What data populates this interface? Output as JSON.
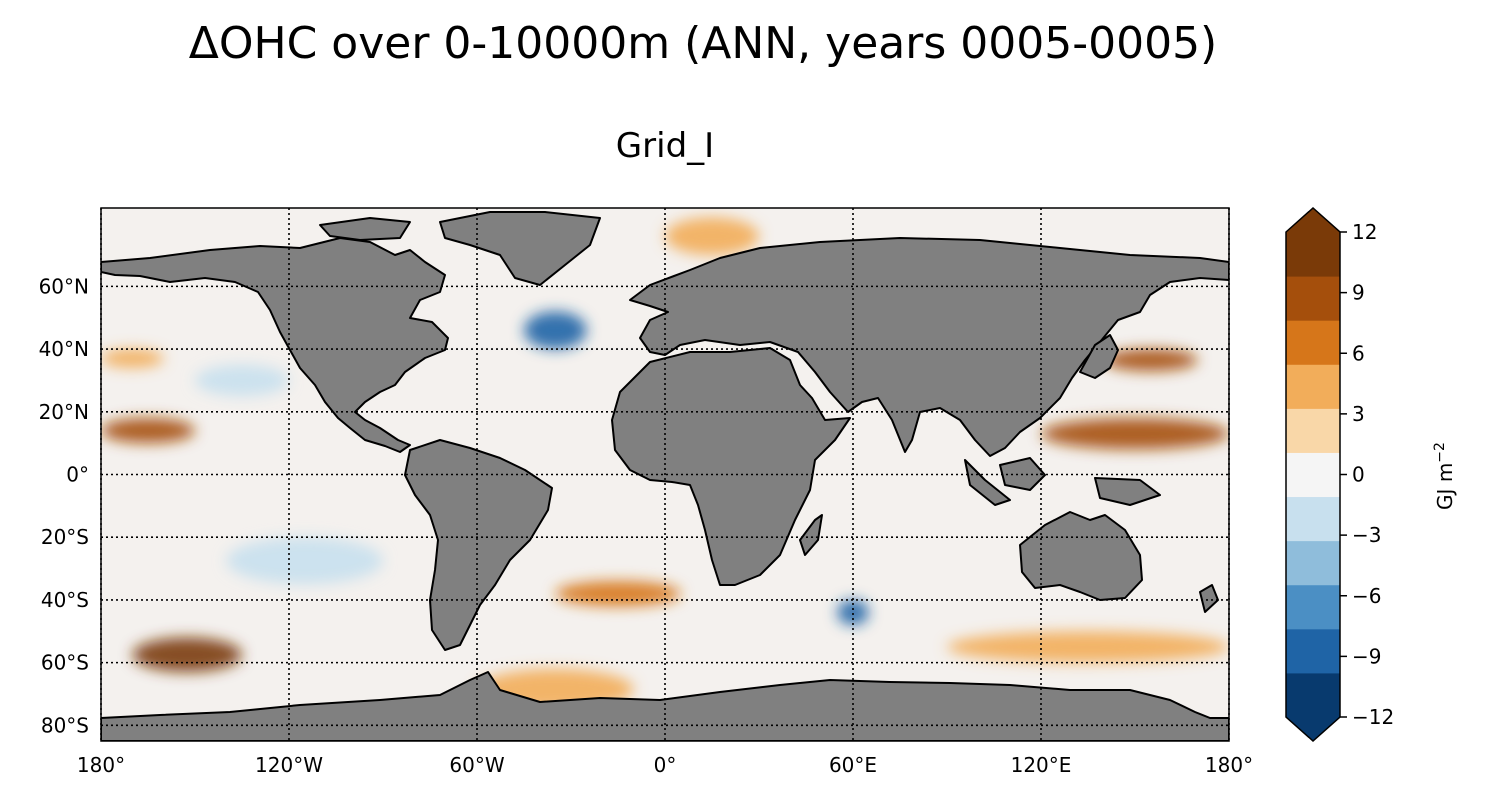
{
  "title": "ΔOHC over 0-10000m (ANN, years 0005-0005)",
  "panel_title": "Grid_I",
  "map": {
    "projection": "PlateCarree",
    "lon_range": [
      -180,
      180
    ],
    "lat_range": [
      -85,
      85
    ],
    "lat_ticks": [
      {
        "lat": 60,
        "label": "60°N"
      },
      {
        "lat": 40,
        "label": "40°N"
      },
      {
        "lat": 20,
        "label": "20°N"
      },
      {
        "lat": 0,
        "label": "0°"
      },
      {
        "lat": -20,
        "label": "20°S"
      },
      {
        "lat": -40,
        "label": "40°S"
      },
      {
        "lat": -60,
        "label": "60°S"
      },
      {
        "lat": -80,
        "label": "80°S"
      }
    ],
    "lon_ticks": [
      {
        "lon": -180,
        "label": "180°"
      },
      {
        "lon": -120,
        "label": "120°W"
      },
      {
        "lon": -60,
        "label": "60°W"
      },
      {
        "lon": 0,
        "label": "0°"
      },
      {
        "lon": 60,
        "label": "60°E"
      },
      {
        "lon": 120,
        "label": "120°E"
      },
      {
        "lon": 180,
        "label": "180°"
      }
    ],
    "gridlines": true,
    "land_color": "#808080",
    "coastline_color": "#000000",
    "field_range": [
      -12,
      12
    ],
    "anomaly_bands": [
      {
        "lon": [
          -180,
          -150
        ],
        "lat": [
          10,
          18
        ],
        "value": 9
      },
      {
        "lon": [
          -180,
          -160
        ],
        "lat": [
          34,
          40
        ],
        "value": 5
      },
      {
        "lon": [
          -170,
          -135
        ],
        "lat": [
          -63,
          -52
        ],
        "value": 11
      },
      {
        "lon": [
          120,
          180
        ],
        "lat": [
          8,
          18
        ],
        "value": 9
      },
      {
        "lon": [
          140,
          170
        ],
        "lat": [
          33,
          40
        ],
        "value": 9
      },
      {
        "lon": [
          -45,
          -25
        ],
        "lat": [
          40,
          52
        ],
        "value": -10
      },
      {
        "lon": [
          -35,
          5
        ],
        "lat": [
          -42,
          -34
        ],
        "value": 6
      },
      {
        "lon": [
          55,
          65
        ],
        "lat": [
          -48,
          -40
        ],
        "value": -9
      },
      {
        "lon": [
          -60,
          -10
        ],
        "lat": [
          -75,
          -62
        ],
        "value": 4
      },
      {
        "lon": [
          -140,
          -90
        ],
        "lat": [
          -35,
          -20
        ],
        "value": -3
      },
      {
        "lon": [
          -150,
          -120
        ],
        "lat": [
          25,
          35
        ],
        "value": -3
      },
      {
        "lon": [
          90,
          180
        ],
        "lat": [
          -60,
          -50
        ],
        "value": 5
      },
      {
        "lon": [
          0,
          30
        ],
        "lat": [
          70,
          82
        ],
        "value": 5
      }
    ]
  },
  "colorbar": {
    "label": "GJ m",
    "label_exponent": "−2",
    "ticks": [
      {
        "value": 12,
        "label": "12"
      },
      {
        "value": 9,
        "label": "9"
      },
      {
        "value": 6,
        "label": "6"
      },
      {
        "value": 3,
        "label": "3"
      },
      {
        "value": 0,
        "label": "0"
      },
      {
        "value": -3,
        "label": "−3"
      },
      {
        "value": -6,
        "label": "−6"
      },
      {
        "value": -9,
        "label": "−9"
      },
      {
        "value": -12,
        "label": "−12"
      }
    ],
    "extend": "both",
    "colors": [
      "#083a6e",
      "#1f64a6",
      "#4b8fc4",
      "#8fbddb",
      "#c8e0ee",
      "#f5f5f5",
      "#f9d7a8",
      "#f2ad5a",
      "#d6761a",
      "#a54f0c",
      "#7a3a08"
    ]
  }
}
